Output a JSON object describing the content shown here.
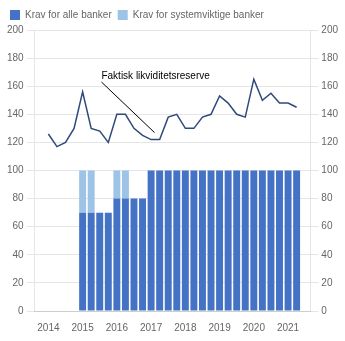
{
  "chart_data": {
    "type": "bar",
    "stacked": true,
    "series": [
      {
        "name": "Krav for alle banker",
        "type": "bar",
        "color": "#4472c4",
        "x": [
          2015.0,
          2015.25,
          2015.5,
          2015.75,
          2016.0,
          2016.25,
          2016.5,
          2016.75,
          2017.0,
          2017.25,
          2017.5,
          2017.75,
          2018.0,
          2018.25,
          2018.5,
          2018.75,
          2019.0,
          2019.25,
          2019.5,
          2019.75,
          2020.0,
          2020.25,
          2020.5,
          2020.75,
          2021.0,
          2021.25
        ],
        "values": [
          70,
          70,
          70,
          70,
          80,
          80,
          80,
          80,
          100,
          100,
          100,
          100,
          100,
          100,
          100,
          100,
          100,
          100,
          100,
          100,
          100,
          100,
          100,
          100,
          100,
          100
        ]
      },
      {
        "name": "Krav for systemviktige banker",
        "type": "bar",
        "color": "#9dc3e6",
        "x": [
          2015.0,
          2015.25,
          2015.5,
          2015.75,
          2016.0,
          2016.25,
          2016.5,
          2016.75,
          2017.0,
          2017.25,
          2017.5,
          2017.75,
          2018.0,
          2018.25,
          2018.5,
          2018.75,
          2019.0,
          2019.25,
          2019.5,
          2019.75,
          2020.0,
          2020.25,
          2020.5,
          2020.75,
          2021.0,
          2021.25
        ],
        "values": [
          30,
          30,
          0,
          0,
          20,
          20,
          0,
          0,
          0,
          0,
          0,
          0,
          0,
          0,
          0,
          0,
          0,
          0,
          0,
          0,
          0,
          0,
          0,
          0,
          0,
          0
        ]
      },
      {
        "type": "line",
        "color": "#2e4a7a",
        "x": [
          2014.0,
          2014.25,
          2014.5,
          2014.75,
          2015.0,
          2015.25,
          2015.5,
          2015.75,
          2016.0,
          2016.25,
          2016.5,
          2016.75,
          2017.0,
          2017.25,
          2017.5,
          2017.75,
          2018.0,
          2018.25,
          2018.5,
          2018.75,
          2019.0,
          2019.25,
          2019.5,
          2019.75,
          2020.0,
          2020.25,
          2020.5,
          2020.75,
          2021.0,
          2021.25
        ],
        "values": [
          126,
          117,
          120,
          130,
          156,
          130,
          128,
          120,
          140,
          140,
          130,
          125,
          122,
          122,
          138,
          140,
          130,
          130,
          138,
          140,
          153,
          148,
          140,
          138,
          165,
          150,
          155,
          148,
          148,
          145
        ]
      }
    ],
    "annotations": [
      {
        "text": "Faktisk likviditetsreserve",
        "x": 2015.55,
        "y": 163,
        "arrow_x": 2017.1,
        "arrow_y": 127
      }
    ],
    "xlim": [
      2013.6,
      2021.65
    ],
    "xticks": [
      2014,
      2015,
      2016,
      2017,
      2018,
      2019,
      2020,
      2021
    ],
    "ylim": [
      0,
      200
    ],
    "yticks": [
      0,
      20,
      40,
      60,
      80,
      100,
      120,
      140,
      160,
      180,
      200
    ],
    "y2lim": [
      0,
      200
    ],
    "y2ticks": [
      0,
      20,
      40,
      60,
      80,
      100,
      120,
      140,
      160,
      180,
      200
    ],
    "grid": "y",
    "legend": "upper left"
  }
}
